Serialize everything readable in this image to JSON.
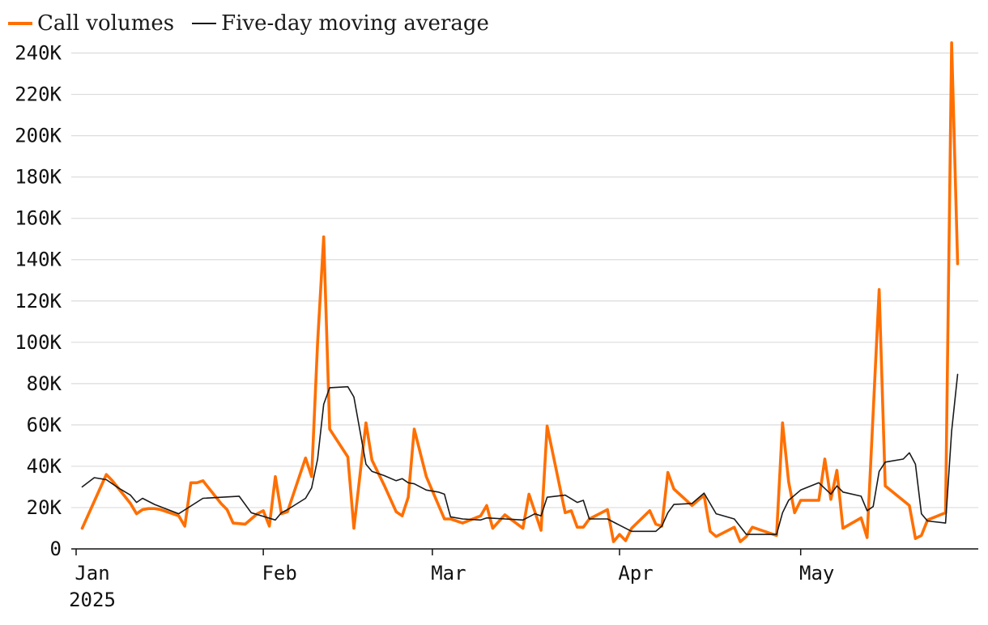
{
  "chart_data": {
    "type": "line",
    "title": "",
    "xlabel": "",
    "ylabel": "",
    "legend_position": "top-left",
    "grid": "horizontal",
    "ylim": [
      0,
      250000
    ],
    "xlim": [
      "2025-01-01",
      "2025-05-28"
    ],
    "y_ticks": [
      {
        "value": 0,
        "label": "0"
      },
      {
        "value": 20000,
        "label": "20K"
      },
      {
        "value": 40000,
        "label": "40K"
      },
      {
        "value": 60000,
        "label": "60K"
      },
      {
        "value": 80000,
        "label": "80K"
      },
      {
        "value": 100000,
        "label": "100K"
      },
      {
        "value": 120000,
        "label": "120K"
      },
      {
        "value": 140000,
        "label": "140K"
      },
      {
        "value": 160000,
        "label": "160K"
      },
      {
        "value": 180000,
        "label": "180K"
      },
      {
        "value": 200000,
        "label": "200K"
      },
      {
        "value": 220000,
        "label": "220K"
      },
      {
        "value": 240000,
        "label": "240K"
      }
    ],
    "x_ticks": [
      {
        "date": "2025-01-01",
        "label": "Jan",
        "sublabel": "2025"
      },
      {
        "date": "2025-02-01",
        "label": "Feb"
      },
      {
        "date": "2025-03-01",
        "label": "Mar"
      },
      {
        "date": "2025-04-01",
        "label": "Apr"
      },
      {
        "date": "2025-05-01",
        "label": "May"
      }
    ],
    "series": [
      {
        "name": "Call volumes",
        "color": "#ff6f00",
        "points": [
          [
            "2025-01-02",
            10000
          ],
          [
            "2025-01-06",
            36000
          ],
          [
            "2025-01-07",
            33000
          ],
          [
            "2025-01-10",
            22000
          ],
          [
            "2025-01-11",
            17000
          ],
          [
            "2025-01-12",
            19000
          ],
          [
            "2025-01-13",
            19500
          ],
          [
            "2025-01-14",
            19500
          ],
          [
            "2025-01-15",
            19000
          ],
          [
            "2025-01-17",
            17000
          ],
          [
            "2025-01-18",
            16000
          ],
          [
            "2025-01-19",
            11000
          ],
          [
            "2025-01-20",
            32000
          ],
          [
            "2025-01-21",
            32000
          ],
          [
            "2025-01-22",
            33000
          ],
          [
            "2025-01-25",
            22000
          ],
          [
            "2025-01-26",
            19000
          ],
          [
            "2025-01-27",
            12500
          ],
          [
            "2025-01-29",
            12000
          ],
          [
            "2025-01-31",
            17000
          ],
          [
            "2025-02-01",
            18500
          ],
          [
            "2025-02-02",
            11000
          ],
          [
            "2025-02-03",
            35000
          ],
          [
            "2025-02-04",
            17000
          ],
          [
            "2025-02-05",
            18000
          ],
          [
            "2025-02-08",
            44000
          ],
          [
            "2025-02-09",
            35000
          ],
          [
            "2025-02-10",
            100000
          ],
          [
            "2025-02-11",
            151000
          ],
          [
            "2025-02-12",
            58000
          ],
          [
            "2025-02-15",
            44500
          ],
          [
            "2025-02-16",
            10000
          ],
          [
            "2025-02-18",
            61000
          ],
          [
            "2025-02-19",
            43000
          ],
          [
            "2025-02-21",
            31000
          ],
          [
            "2025-02-23",
            18000
          ],
          [
            "2025-02-24",
            16000
          ],
          [
            "2025-02-25",
            25000
          ],
          [
            "2025-02-26",
            58000
          ],
          [
            "2025-02-28",
            35000
          ],
          [
            "2025-03-03",
            14500
          ],
          [
            "2025-03-04",
            14500
          ],
          [
            "2025-03-06",
            12500
          ],
          [
            "2025-03-09",
            16000
          ],
          [
            "2025-03-10",
            21000
          ],
          [
            "2025-03-11",
            10000
          ],
          [
            "2025-03-13",
            16500
          ],
          [
            "2025-03-16",
            10000
          ],
          [
            "2025-03-17",
            26500
          ],
          [
            "2025-03-19",
            9000
          ],
          [
            "2025-03-20",
            59500
          ],
          [
            "2025-03-23",
            17500
          ],
          [
            "2025-03-24",
            18500
          ],
          [
            "2025-03-25",
            10500
          ],
          [
            "2025-03-26",
            10500
          ],
          [
            "2025-03-27",
            14500
          ],
          [
            "2025-03-30",
            19000
          ],
          [
            "2025-03-31",
            3500
          ],
          [
            "2025-04-01",
            7000
          ],
          [
            "2025-04-02",
            4000
          ],
          [
            "2025-04-03",
            10000
          ],
          [
            "2025-04-06",
            18500
          ],
          [
            "2025-04-07",
            12000
          ],
          [
            "2025-04-08",
            11000
          ],
          [
            "2025-04-09",
            37000
          ],
          [
            "2025-04-10",
            29000
          ],
          [
            "2025-04-13",
            21000
          ],
          [
            "2025-04-15",
            26000
          ],
          [
            "2025-04-16",
            8500
          ],
          [
            "2025-04-17",
            6000
          ],
          [
            "2025-04-20",
            10500
          ],
          [
            "2025-04-21",
            3500
          ],
          [
            "2025-04-22",
            6000
          ],
          [
            "2025-04-23",
            10500
          ],
          [
            "2025-04-27",
            6500
          ],
          [
            "2025-04-28",
            61000
          ],
          [
            "2025-04-29",
            32500
          ],
          [
            "2025-04-30",
            17500
          ],
          [
            "2025-05-01",
            23500
          ],
          [
            "2025-05-04",
            23500
          ],
          [
            "2025-05-05",
            43500
          ],
          [
            "2025-05-06",
            24000
          ],
          [
            "2025-05-07",
            38000
          ],
          [
            "2025-05-08",
            10000
          ],
          [
            "2025-05-11",
            15000
          ],
          [
            "2025-05-12",
            5500
          ],
          [
            "2025-05-14",
            125500
          ],
          [
            "2025-05-15",
            30500
          ],
          [
            "2025-05-19",
            21000
          ],
          [
            "2025-05-20",
            5000
          ],
          [
            "2025-05-21",
            6500
          ],
          [
            "2025-05-22",
            14000
          ],
          [
            "2025-05-25",
            17500
          ],
          [
            "2025-05-26",
            245000
          ],
          [
            "2025-05-27",
            138000
          ]
        ]
      },
      {
        "name": "Five-day moving average",
        "color": "#1a1a1a",
        "points": [
          [
            "2025-01-02",
            30000
          ],
          [
            "2025-01-04",
            34500
          ],
          [
            "2025-01-06",
            33500
          ],
          [
            "2025-01-08",
            29500
          ],
          [
            "2025-01-10",
            26000
          ],
          [
            "2025-01-11",
            22500
          ],
          [
            "2025-01-12",
            24500
          ],
          [
            "2025-01-14",
            21500
          ],
          [
            "2025-01-18",
            17000
          ],
          [
            "2025-01-22",
            24500
          ],
          [
            "2025-01-28",
            25500
          ],
          [
            "2025-01-30",
            17500
          ],
          [
            "2025-02-03",
            14000
          ],
          [
            "2025-02-04",
            17500
          ],
          [
            "2025-02-05",
            19000
          ],
          [
            "2025-02-08",
            24500
          ],
          [
            "2025-02-09",
            29500
          ],
          [
            "2025-02-10",
            43500
          ],
          [
            "2025-02-11",
            70000
          ],
          [
            "2025-02-12",
            78000
          ],
          [
            "2025-02-15",
            78500
          ],
          [
            "2025-02-16",
            73500
          ],
          [
            "2025-02-18",
            41000
          ],
          [
            "2025-02-19",
            37500
          ],
          [
            "2025-02-21",
            35500
          ],
          [
            "2025-02-23",
            33000
          ],
          [
            "2025-02-24",
            34000
          ],
          [
            "2025-02-25",
            32000
          ],
          [
            "2025-02-26",
            31500
          ],
          [
            "2025-02-28",
            28500
          ],
          [
            "2025-03-02",
            27500
          ],
          [
            "2025-03-03",
            26500
          ],
          [
            "2025-03-04",
            15500
          ],
          [
            "2025-03-06",
            14500
          ],
          [
            "2025-03-09",
            14000
          ],
          [
            "2025-03-10",
            15000
          ],
          [
            "2025-03-13",
            14500
          ],
          [
            "2025-03-16",
            14000
          ],
          [
            "2025-03-18",
            17000
          ],
          [
            "2025-03-19",
            16000
          ],
          [
            "2025-03-20",
            25000
          ],
          [
            "2025-03-23",
            26000
          ],
          [
            "2025-03-25",
            22500
          ],
          [
            "2025-03-26",
            23500
          ],
          [
            "2025-03-27",
            14500
          ],
          [
            "2025-03-30",
            14500
          ],
          [
            "2025-04-01",
            11500
          ],
          [
            "2025-04-03",
            8500
          ],
          [
            "2025-04-07",
            8500
          ],
          [
            "2025-04-08",
            11000
          ],
          [
            "2025-04-09",
            17500
          ],
          [
            "2025-04-10",
            21500
          ],
          [
            "2025-04-13",
            22000
          ],
          [
            "2025-04-15",
            27000
          ],
          [
            "2025-04-17",
            17000
          ],
          [
            "2025-04-20",
            14500
          ],
          [
            "2025-04-22",
            7000
          ],
          [
            "2025-04-27",
            7000
          ],
          [
            "2025-04-28",
            17500
          ],
          [
            "2025-04-29",
            23500
          ],
          [
            "2025-05-01",
            28500
          ],
          [
            "2025-05-04",
            32000
          ],
          [
            "2025-05-06",
            26500
          ],
          [
            "2025-05-07",
            30500
          ],
          [
            "2025-05-08",
            27500
          ],
          [
            "2025-05-11",
            25500
          ],
          [
            "2025-05-12",
            18500
          ],
          [
            "2025-05-13",
            20500
          ],
          [
            "2025-05-14",
            37500
          ],
          [
            "2025-05-15",
            42000
          ],
          [
            "2025-05-18",
            43500
          ],
          [
            "2025-05-19",
            46500
          ],
          [
            "2025-05-20",
            41000
          ],
          [
            "2025-05-21",
            17000
          ],
          [
            "2025-05-22",
            13500
          ],
          [
            "2025-05-25",
            12500
          ],
          [
            "2025-05-26",
            57000
          ],
          [
            "2025-05-27",
            84500
          ]
        ]
      }
    ]
  }
}
